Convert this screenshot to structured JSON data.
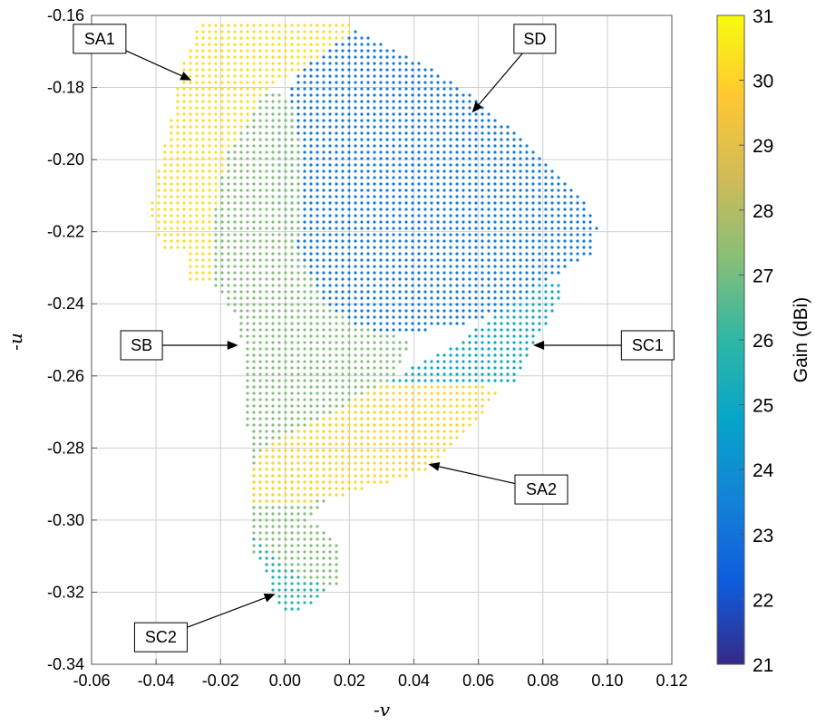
{
  "chart_data": {
    "type": "scatter",
    "title": "",
    "xlabel": "-v",
    "ylabel": "-u",
    "xlim": [
      -0.06,
      0.12
    ],
    "ylim": [
      -0.34,
      -0.16
    ],
    "x_ticks": [
      "-0.06",
      "-0.04",
      "-0.02",
      "0.00",
      "0.02",
      "0.04",
      "0.06",
      "0.08",
      "0.10",
      "0.12"
    ],
    "x_tick_values": [
      -0.06,
      -0.04,
      -0.02,
      0.0,
      0.02,
      0.04,
      0.06,
      0.08,
      0.1,
      0.12
    ],
    "y_ticks": [
      "-0.16",
      "-0.18",
      "-0.20",
      "-0.22",
      "-0.24",
      "-0.26",
      "-0.28",
      "-0.30",
      "-0.32",
      "-0.34"
    ],
    "y_tick_values": [
      -0.16,
      -0.18,
      -0.2,
      -0.22,
      -0.24,
      -0.26,
      -0.28,
      -0.3,
      -0.32,
      -0.34
    ],
    "grid": true,
    "colorbar": {
      "label": "Gain (dBi)",
      "min": 21,
      "max": 31,
      "ticks": [
        "21",
        "22",
        "23",
        "24",
        "25",
        "26",
        "27",
        "28",
        "29",
        "30",
        "31"
      ],
      "tick_values": [
        21,
        22,
        23,
        24,
        25,
        26,
        27,
        28,
        29,
        30,
        31
      ],
      "colormap": "parula",
      "stops": [
        "#352a87",
        "#0f5cdd",
        "#1481d6",
        "#06a4ca",
        "#2eb7a4",
        "#87bf77",
        "#d1bb59",
        "#fec832",
        "#f9fb0e"
      ]
    },
    "regions": [
      {
        "name": "SA1",
        "gain_dBi": 30.3,
        "polygon": [
          [
            -0.027,
            -0.162
          ],
          [
            0.02,
            -0.162
          ],
          [
            0.022,
            -0.166
          ],
          [
            0.01,
            -0.172
          ],
          [
            -0.005,
            -0.18
          ],
          [
            -0.018,
            -0.198
          ],
          [
            -0.022,
            -0.215
          ],
          [
            -0.022,
            -0.235
          ],
          [
            -0.03,
            -0.234
          ],
          [
            -0.03,
            -0.226
          ],
          [
            -0.038,
            -0.225
          ],
          [
            -0.042,
            -0.215
          ],
          [
            -0.04,
            -0.205
          ],
          [
            -0.037,
            -0.195
          ],
          [
            -0.032,
            -0.175
          ]
        ]
      },
      {
        "name": "SD",
        "gain_dBi": 23.3,
        "polygon": [
          [
            0.022,
            -0.164
          ],
          [
            0.038,
            -0.171
          ],
          [
            0.06,
            -0.183
          ],
          [
            0.075,
            -0.196
          ],
          [
            0.09,
            -0.208
          ],
          [
            0.097,
            -0.218
          ],
          [
            0.096,
            -0.226
          ],
          [
            0.08,
            -0.234
          ],
          [
            0.07,
            -0.242
          ],
          [
            0.05,
            -0.247
          ],
          [
            0.03,
            -0.248
          ],
          [
            0.02,
            -0.245
          ],
          [
            0.012,
            -0.24
          ],
          [
            0.004,
            -0.23
          ],
          [
            -0.003,
            -0.21
          ],
          [
            -0.003,
            -0.19
          ],
          [
            0.005,
            -0.175
          ]
        ]
      },
      {
        "name": "SB",
        "gain_dBi": 27.2,
        "polygon": [
          [
            -0.005,
            -0.18
          ],
          [
            0.003,
            -0.185
          ],
          [
            0.005,
            -0.2
          ],
          [
            0.004,
            -0.225
          ],
          [
            0.012,
            -0.24
          ],
          [
            0.02,
            -0.245
          ],
          [
            0.03,
            -0.248
          ],
          [
            0.04,
            -0.25
          ],
          [
            0.035,
            -0.258
          ],
          [
            0.032,
            -0.27
          ],
          [
            0.02,
            -0.285
          ],
          [
            0.008,
            -0.3
          ],
          [
            0.016,
            -0.306
          ],
          [
            0.016,
            -0.318
          ],
          [
            0.004,
            -0.318
          ],
          [
            -0.01,
            -0.31
          ],
          [
            -0.01,
            -0.295
          ],
          [
            -0.012,
            -0.27
          ],
          [
            -0.014,
            -0.245
          ],
          [
            -0.022,
            -0.235
          ],
          [
            -0.022,
            -0.215
          ],
          [
            -0.018,
            -0.198
          ]
        ]
      },
      {
        "name": "SA2",
        "gain_dBi": 30.1,
        "polygon": [
          [
            -0.007,
            -0.28
          ],
          [
            0.015,
            -0.27
          ],
          [
            0.03,
            -0.262
          ],
          [
            0.042,
            -0.261
          ],
          [
            0.058,
            -0.262
          ],
          [
            0.066,
            -0.264
          ],
          [
            0.06,
            -0.272
          ],
          [
            0.052,
            -0.28
          ],
          [
            0.045,
            -0.286
          ],
          [
            0.03,
            -0.29
          ],
          [
            0.015,
            -0.294
          ],
          [
            0.0,
            -0.296
          ],
          [
            -0.01,
            -0.296
          ],
          [
            -0.011,
            -0.287
          ]
        ]
      },
      {
        "name": "SC1",
        "gain_dBi": 25.0,
        "polygon": [
          [
            0.032,
            -0.262
          ],
          [
            0.038,
            -0.258
          ],
          [
            0.05,
            -0.253
          ],
          [
            0.062,
            -0.245
          ],
          [
            0.074,
            -0.238
          ],
          [
            0.082,
            -0.233
          ],
          [
            0.087,
            -0.234
          ],
          [
            0.083,
            -0.243
          ],
          [
            0.076,
            -0.252
          ],
          [
            0.072,
            -0.262
          ],
          [
            0.062,
            -0.263
          ],
          [
            0.05,
            -0.262
          ],
          [
            0.04,
            -0.262
          ]
        ]
      },
      {
        "name": "SC2",
        "gain_dBi": 25.8,
        "polygon": [
          [
            -0.011,
            -0.304
          ],
          [
            -0.004,
            -0.31
          ],
          [
            0.006,
            -0.316
          ],
          [
            0.014,
            -0.319
          ],
          [
            0.004,
            -0.326
          ],
          [
            -0.001,
            -0.326
          ]
        ]
      }
    ],
    "annotations": [
      {
        "label": "SA1",
        "box": [
          -0.0575,
          -0.1665
        ],
        "tip": [
          -0.029,
          -0.178
        ]
      },
      {
        "label": "SD",
        "box": [
          0.0775,
          -0.1665
        ],
        "tip": [
          0.058,
          -0.187
        ]
      },
      {
        "label": "SB",
        "box": [
          -0.0445,
          -0.2515
        ],
        "tip": [
          -0.0145,
          -0.2515
        ]
      },
      {
        "label": "SC1",
        "box": [
          0.1125,
          -0.2515
        ],
        "tip": [
          0.077,
          -0.2515
        ]
      },
      {
        "label": "SA2",
        "box": [
          0.0795,
          -0.2915
        ],
        "tip": [
          0.0445,
          -0.2845
        ]
      },
      {
        "label": "SC2",
        "box": [
          -0.0385,
          -0.3325
        ],
        "tip": [
          -0.003,
          -0.3205
        ]
      }
    ]
  }
}
